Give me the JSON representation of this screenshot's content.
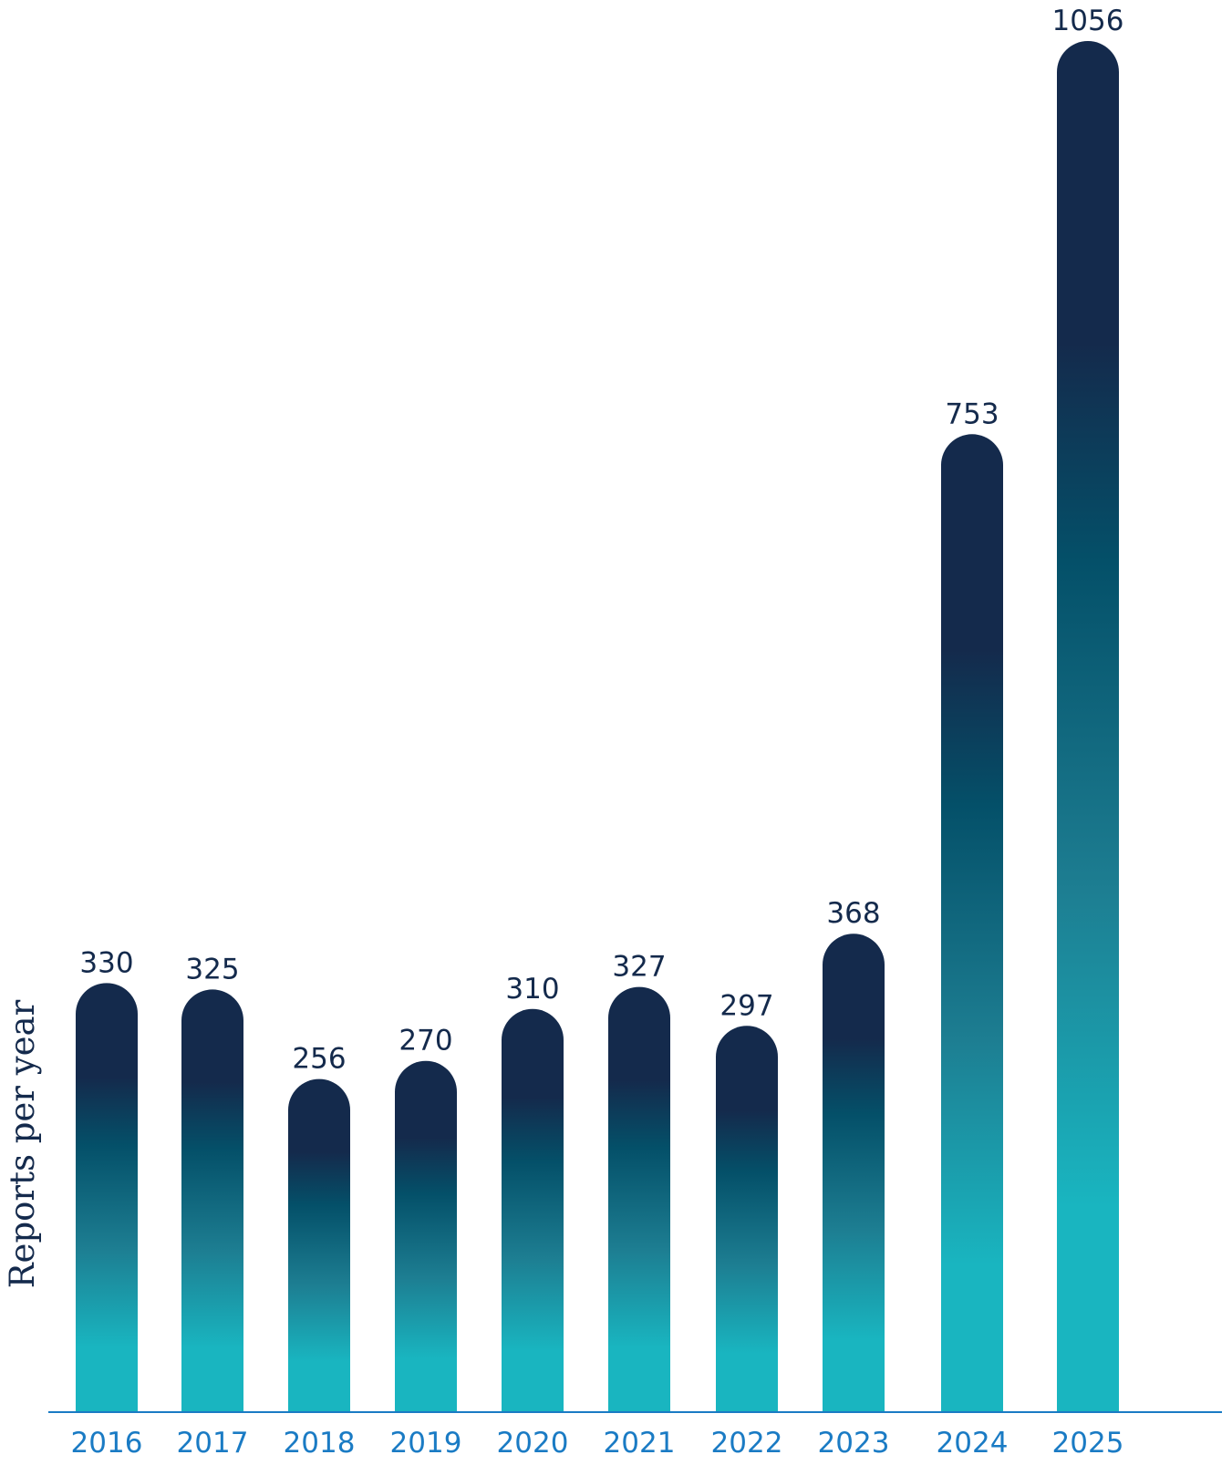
{
  "chart_data": {
    "type": "bar",
    "categories": [
      "2016",
      "2017",
      "2018",
      "2019",
      "2020",
      "2021",
      "2022",
      "2023",
      "2024",
      "2025"
    ],
    "values": [
      330,
      325,
      256,
      270,
      310,
      327,
      297,
      368,
      753,
      1056
    ],
    "data_labels": [
      "330",
      "325",
      "256",
      "270",
      "310",
      "327",
      "297",
      "368",
      "753",
      "1056"
    ],
    "title": "",
    "xlabel": "",
    "ylabel": "Reports per year",
    "ylim": [
      0,
      1056
    ],
    "grid": false,
    "legend": "none"
  },
  "colors": {
    "bar_top": "#142a4c",
    "bar_mid": "#045069",
    "bar_bottom": "#19b5c0",
    "value_label": "#142a4c",
    "tick_label": "#1a7bc4",
    "axis_line": "#1a7bc4",
    "axis_title": "#142a4c"
  }
}
